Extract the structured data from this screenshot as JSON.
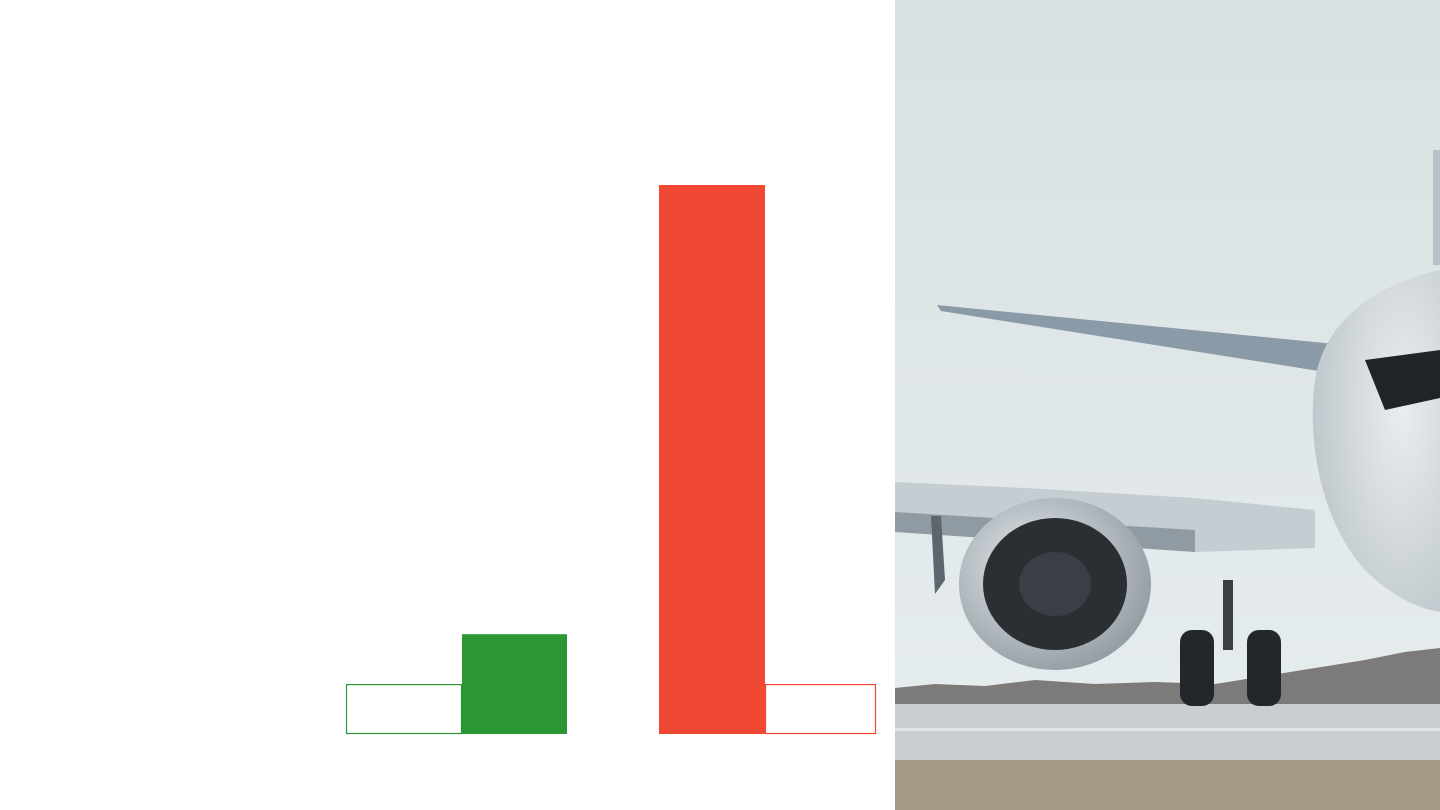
{
  "chart_data": {
    "type": "bar",
    "categories": [
      "",
      ""
    ],
    "series": [
      {
        "values": [
          100,
          550
        ],
        "style": "solid"
      },
      {
        "values": [
          50,
          50
        ],
        "style": "outline"
      }
    ],
    "ylim": [
      0,
      550
    ],
    "grid": false,
    "legend": "none",
    "colors": [
      "#2a9734",
      "#f04832"
    ]
  },
  "photo": {
    "subject": "airplane-on-runway",
    "colors": {
      "sky_top": "#d8e0e2",
      "sky_bottom": "#e8eeef",
      "fuselage": "#dde3e7",
      "engine_inlet": "#2b2f33",
      "runway": "#c9cfd1",
      "grass": "#a49887",
      "treeline": "#7d7a7a"
    }
  }
}
